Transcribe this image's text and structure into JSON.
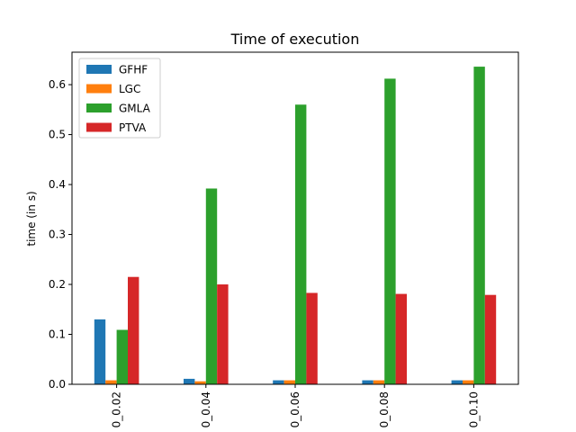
{
  "chart_data": {
    "type": "bar",
    "title": "Time of execution",
    "xlabel": "",
    "ylabel": "time (in s)",
    "categories": [
      "0_0.02",
      "0_0.04",
      "0_0.06",
      "0_0.08",
      "0_0.10"
    ],
    "ylim": [
      0,
      0.665
    ],
    "yticks": [
      0.0,
      0.1,
      0.2,
      0.3,
      0.4,
      0.5,
      0.6
    ],
    "ytick_labels": [
      "0.0",
      "0.1",
      "0.2",
      "0.3",
      "0.4",
      "0.5",
      "0.6"
    ],
    "grid": false,
    "legend_position": "top-left",
    "series": [
      {
        "name": "GFHF",
        "color": "#1f77b4",
        "values": [
          0.13,
          0.011,
          0.008,
          0.008,
          0.008
        ]
      },
      {
        "name": "LGC",
        "color": "#ff7f0e",
        "values": [
          0.008,
          0.006,
          0.008,
          0.008,
          0.008
        ]
      },
      {
        "name": "GMLA",
        "color": "#2ca02c",
        "values": [
          0.109,
          0.392,
          0.56,
          0.612,
          0.636
        ]
      },
      {
        "name": "PTVA",
        "color": "#d62728",
        "values": [
          0.215,
          0.2,
          0.183,
          0.181,
          0.179
        ]
      }
    ]
  }
}
